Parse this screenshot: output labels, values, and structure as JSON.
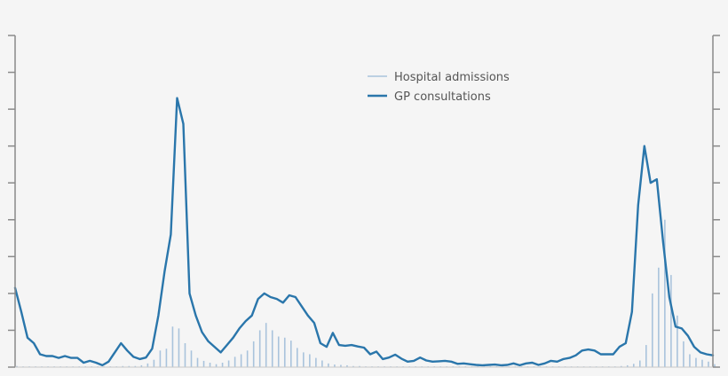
{
  "colors": {
    "background": "#f5f5f5",
    "axis": "#8a8a8a",
    "gp_line": "#2a76ab",
    "admissions_bar": "#a9c3dc"
  },
  "chart_data": {
    "type": "line",
    "title": "",
    "xlabel": "",
    "ylabel_left": "",
    "ylabel_right": "",
    "ylim": [
      0,
      90
    ],
    "y_tick_count": 10,
    "y_ticks_labeled": false,
    "x_ticks_labeled": false,
    "grid": false,
    "legend_position": "top-center",
    "legend": [
      "Hospital admissions",
      "GP consultations"
    ],
    "n_points": 113,
    "series": [
      {
        "name": "GP consultations",
        "style": "line",
        "axis": "left",
        "values": [
          21.5,
          15,
          8,
          6.5,
          3.5,
          3,
          3,
          2.5,
          3,
          2.5,
          2.5,
          1.2,
          1.7,
          1.2,
          0.5,
          1.5,
          4,
          6.5,
          4.5,
          2.8,
          2.2,
          2.6,
          5,
          14,
          26,
          36,
          73,
          66,
          20,
          14,
          9.5,
          7,
          5.5,
          4,
          6,
          8,
          10.5,
          12.5,
          14,
          18.5,
          20,
          19,
          18.5,
          17.5,
          19.5,
          19,
          16.5,
          14,
          12,
          6.5,
          5.5,
          9.3,
          6,
          5.8,
          6,
          5.6,
          5.3,
          3.5,
          4.2,
          2.2,
          2.6,
          3.4,
          2.3,
          1.5,
          1.7,
          2.6,
          1.8,
          1.5,
          1.6,
          1.7,
          1.5,
          0.9,
          1,
          0.8,
          0.6,
          0.5,
          0.6,
          0.7,
          0.5,
          0.6,
          1,
          0.5,
          1,
          1.2,
          0.6,
          1,
          1.7,
          1.5,
          2.2,
          2.5,
          3.2,
          4.5,
          4.8,
          4.5,
          3.5,
          3.5,
          3.5,
          5.5,
          6.5,
          15,
          44,
          60,
          50,
          51,
          34,
          19,
          11,
          10.5,
          8.5,
          5.5,
          4,
          3.5,
          3.2
        ],
        "color": "#2a76ab"
      },
      {
        "name": "Hospital admissions",
        "style": "bar",
        "axis": "right",
        "values": [
          0.3,
          0.2,
          0.2,
          0.2,
          0.2,
          0.2,
          0.2,
          0.2,
          0.2,
          0.2,
          0.2,
          0.2,
          0.2,
          0.2,
          0.2,
          0.2,
          0.2,
          0.3,
          0.3,
          0.3,
          0.5,
          1,
          2,
          4.5,
          5,
          11,
          10.5,
          6.5,
          4.5,
          2.5,
          1.7,
          1.2,
          0.8,
          1.2,
          1.8,
          2.8,
          3.5,
          4.5,
          7,
          10,
          12,
          10,
          8.3,
          8,
          7.2,
          5.2,
          4,
          3.5,
          2.5,
          1.8,
          1,
          0.7,
          0.6,
          0.5,
          0.3,
          0.3,
          0.2,
          0.2,
          0.2,
          0.2,
          0.2,
          0.2,
          0.2,
          0.2,
          0.2,
          0.2,
          0.2,
          0.2,
          0.2,
          0.2,
          0.2,
          0.2,
          0.2,
          0.2,
          0.2,
          0.2,
          0.2,
          0.2,
          0.2,
          0.2,
          0.2,
          0.2,
          0.2,
          0.2,
          0.2,
          0.2,
          0.2,
          0.2,
          0.2,
          0.2,
          0.2,
          0.2,
          0.2,
          0.2,
          0.2,
          0.2,
          0.2,
          0.3,
          0.5,
          0.9,
          1.8,
          6,
          20,
          27,
          40,
          25,
          14,
          7,
          3.5,
          2.5,
          2,
          1.5,
          0.8
        ],
        "color": "#a9c3dc"
      }
    ]
  },
  "legend": {
    "items": [
      {
        "label": "Hospital admissions",
        "swatch": "thin-line"
      },
      {
        "label": "GP consultations",
        "swatch": "thick-line"
      }
    ]
  }
}
